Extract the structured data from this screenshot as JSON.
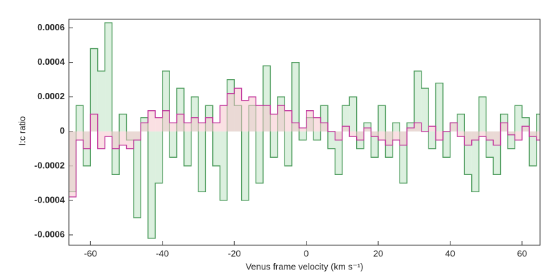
{
  "chart_data": {
    "type": "step",
    "xlabel": "Venus frame velocity (km s⁻¹)",
    "ylabel": "I:c ratio",
    "x": [
      -65,
      -63,
      -61,
      -59,
      -57,
      -55,
      -53,
      -51,
      -49,
      -47,
      -45,
      -43,
      -41,
      -39,
      -37,
      -35,
      -33,
      -31,
      -29,
      -27,
      -25,
      -23,
      -21,
      -19,
      -17,
      -15,
      -13,
      -11,
      -9,
      -7,
      -5,
      -3,
      -1,
      1,
      3,
      5,
      7,
      9,
      11,
      13,
      15,
      17,
      19,
      21,
      23,
      25,
      27,
      29,
      31,
      33,
      35,
      37,
      39,
      41,
      43,
      45,
      47,
      49,
      51,
      53,
      55,
      57,
      59,
      61,
      63,
      65
    ],
    "series": [
      {
        "color": "#4a9a5a",
        "fill": "#bfe3c4",
        "values": [
          -0.00035,
          0.00015,
          -0.0002,
          0.00048,
          0.00035,
          0.00063,
          -0.00025,
          0.0001,
          -5e-05,
          -0.0005,
          8e-05,
          -0.00062,
          -0.0003,
          0.00035,
          -0.00015,
          0.00025,
          -0.0002,
          0.0002,
          -0.00035,
          0.00015,
          -0.0002,
          -0.0004,
          0.0003,
          0.00015,
          -0.0004,
          0.00015,
          -0.0003,
          0.00038,
          -0.00015,
          0.0002,
          -0.0002,
          0.0004,
          -5e-05,
          8e-05,
          -5e-05,
          0.00015,
          -0.0001,
          -0.00025,
          0.00015,
          0.0002,
          -0.0001,
          5e-05,
          -0.00015,
          0.00015,
          -0.00015,
          5e-05,
          -0.0003,
          5e-05,
          0.00035,
          0.00025,
          -0.0001,
          0.00028,
          -0.00015,
          5e-05,
          0.0001,
          -0.00025,
          -0.00035,
          0.0002,
          -0.00015,
          -0.00025,
          0.0001,
          -0.0001,
          0.00015,
          8e-05,
          -0.0002,
          0.0001
        ]
      },
      {
        "color": "#c0309a",
        "fill": "#f6c6cc",
        "values": [
          -0.00038,
          -5e-05,
          -0.0001,
          0.0001,
          -0.0001,
          -3e-05,
          -0.0001,
          -8e-05,
          -0.0001,
          -5e-05,
          5e-05,
          0.00012,
          8e-05,
          0.00012,
          5e-05,
          0.0001,
          5e-05,
          8e-05,
          5e-05,
          8e-05,
          5e-05,
          0.00015,
          0.00022,
          0.00025,
          0.00018,
          0.0002,
          0.00015,
          0.00015,
          0.0001,
          0.00015,
          0.00012,
          5e-05,
          2e-05,
          0.00012,
          8e-05,
          5e-05,
          0,
          -5e-05,
          3e-05,
          -3e-05,
          -5e-05,
          2e-05,
          -3e-05,
          -5e-05,
          -8e-05,
          -5e-05,
          -8e-05,
          2e-05,
          5e-05,
          0,
          3e-05,
          -5e-05,
          0,
          5e-05,
          -3e-05,
          -8e-05,
          -5e-05,
          -3e-05,
          -5e-05,
          -8e-05,
          5e-05,
          -2e-05,
          -5e-05,
          3e-05,
          -3e-05,
          -5e-05
        ]
      }
    ],
    "xlim": [
      -66,
      65
    ],
    "ylim": [
      -0.00066,
      0.00065
    ],
    "xticks": [
      -60,
      -40,
      -20,
      0,
      20,
      40,
      60
    ],
    "yticks": [
      0.0006,
      0.0004,
      0.0002,
      0,
      -0.0002,
      -0.0004,
      -0.0006
    ]
  }
}
